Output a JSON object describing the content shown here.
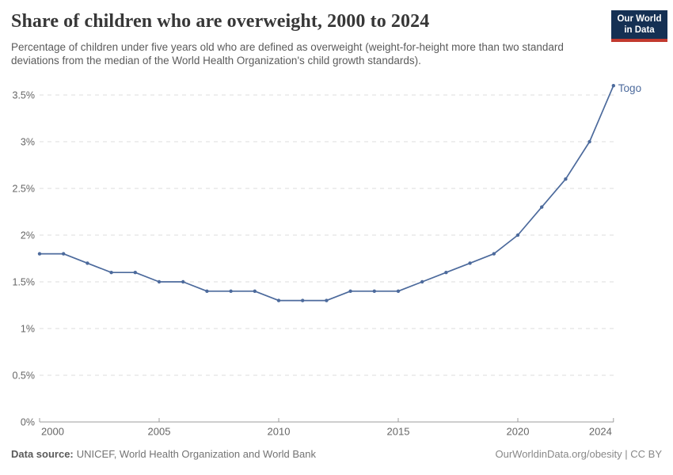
{
  "header": {
    "title": "Share of children who are overweight, 2000 to 2024",
    "subtitle": "Percentage of children under five years old who are defined as overweight (weight-for-height more than two standard deviations from the median of the World Health Organization's child growth standards).",
    "logo": {
      "line1": "Our World",
      "line2": "in Data"
    }
  },
  "chart_data": {
    "type": "line",
    "title": "Share of children who are overweight, 2000 to 2024",
    "xlabel": "",
    "ylabel": "",
    "x": [
      2000,
      2001,
      2002,
      2003,
      2004,
      2005,
      2006,
      2007,
      2008,
      2009,
      2010,
      2011,
      2012,
      2013,
      2014,
      2015,
      2016,
      2017,
      2018,
      2019,
      2020,
      2021,
      2022,
      2023,
      2024
    ],
    "series": [
      {
        "name": "Togo",
        "color": "#4c6a9c",
        "values": [
          1.8,
          1.8,
          1.7,
          1.6,
          1.6,
          1.5,
          1.5,
          1.4,
          1.4,
          1.4,
          1.3,
          1.3,
          1.3,
          1.4,
          1.4,
          1.4,
          1.5,
          1.6,
          1.7,
          1.8,
          2.0,
          2.3,
          2.6,
          3.0,
          3.6
        ]
      }
    ],
    "xlim": [
      2000,
      2024
    ],
    "ylim": [
      0,
      3.6
    ],
    "grid": "horizontal-dashed",
    "legend_position": "end-of-line-label",
    "yticks": [
      {
        "value": 0,
        "label": "0%"
      },
      {
        "value": 0.5,
        "label": "0.5%"
      },
      {
        "value": 1,
        "label": "1%"
      },
      {
        "value": 1.5,
        "label": "1.5%"
      },
      {
        "value": 2,
        "label": "2%"
      },
      {
        "value": 2.5,
        "label": "2.5%"
      },
      {
        "value": 3,
        "label": "3%"
      },
      {
        "value": 3.5,
        "label": "3.5%"
      }
    ],
    "xticks": [
      {
        "value": 2000,
        "label": "2000"
      },
      {
        "value": 2005,
        "label": "2005"
      },
      {
        "value": 2010,
        "label": "2010"
      },
      {
        "value": 2015,
        "label": "2015"
      },
      {
        "value": 2020,
        "label": "2020"
      },
      {
        "value": 2024,
        "label": "2024"
      }
    ]
  },
  "footer": {
    "source_label": "Data source:",
    "source_text": "UNICEF, World Health Organization and World Bank",
    "credit": "OurWorldinData.org/obesity | CC BY"
  },
  "colors": {
    "line": "#4c6a9c",
    "grid": "#dcdcdc",
    "axis": "#9e9e9e",
    "tick_label": "#666666",
    "logo_navy": "#153053",
    "logo_red": "#c2392e"
  }
}
